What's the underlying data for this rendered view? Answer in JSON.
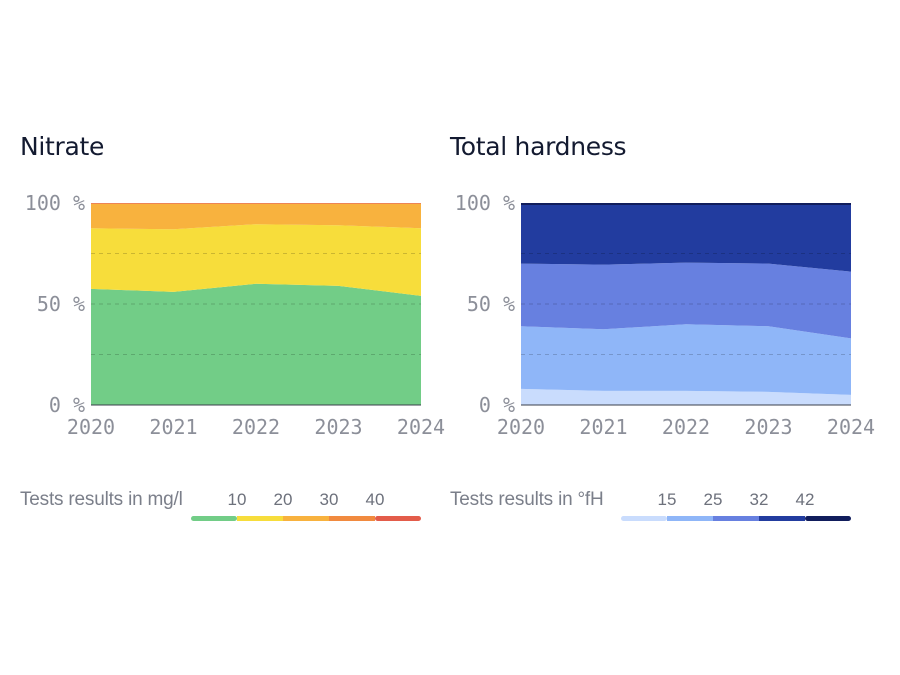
{
  "chart_data": [
    {
      "type": "area",
      "stacked": true,
      "normalized": true,
      "title": "Nitrate",
      "x": [
        "2020",
        "2021",
        "2022",
        "2023",
        "2024"
      ],
      "y_ticks": [
        "0 %",
        "50 %",
        "100 %"
      ],
      "ylim": [
        0,
        100
      ],
      "grid": "dashed horizontal",
      "series": [
        {
          "color": "#72cd87",
          "values": [
            57.5,
            56,
            60,
            59,
            54
          ]
        },
        {
          "color": "#f7dd3b",
          "values": [
            30,
            31,
            29.5,
            30,
            33.5
          ]
        },
        {
          "color": "#f8b23e",
          "values": [
            12,
            12.5,
            10,
            10.5,
            12
          ]
        },
        {
          "color": "#f18a3f",
          "values": [
            0.3,
            0.3,
            0.3,
            0.3,
            0.3
          ]
        },
        {
          "color": "#e35c4a",
          "values": [
            0.2,
            0.2,
            0.2,
            0.2,
            0.2
          ]
        }
      ],
      "legend": {
        "title": "Tests results in mg/l",
        "thresholds": [
          "10",
          "20",
          "30",
          "40"
        ],
        "colors": [
          "#72cd87",
          "#f7dd3b",
          "#f8b23e",
          "#f18a3f",
          "#e35c4a"
        ]
      }
    },
    {
      "type": "area",
      "stacked": true,
      "normalized": true,
      "title": "Total hardness",
      "x": [
        "2020",
        "2021",
        "2022",
        "2023",
        "2024"
      ],
      "y_ticks": [
        "0 %",
        "50 %",
        "100 %"
      ],
      "ylim": [
        0,
        100
      ],
      "grid": "dashed horizontal",
      "series": [
        {
          "color": "#c9dcfd",
          "values": [
            8,
            7,
            7,
            6.5,
            5
          ]
        },
        {
          "color": "#8fb6f8",
          "values": [
            31,
            30.5,
            33,
            32.5,
            28
          ]
        },
        {
          "color": "#6780e0",
          "values": [
            31,
            32,
            30.5,
            31,
            33
          ]
        },
        {
          "color": "#223c9f",
          "values": [
            29,
            29.5,
            28.5,
            29,
            33
          ]
        },
        {
          "color": "#111d5c",
          "values": [
            1,
            1,
            1,
            1,
            1
          ]
        }
      ],
      "legend": {
        "title": "Tests results in °fH",
        "thresholds": [
          "15",
          "25",
          "32",
          "42"
        ],
        "colors": [
          "#c9dcfd",
          "#8fb6f8",
          "#6780e0",
          "#223c9f",
          "#111d5c"
        ]
      }
    }
  ]
}
